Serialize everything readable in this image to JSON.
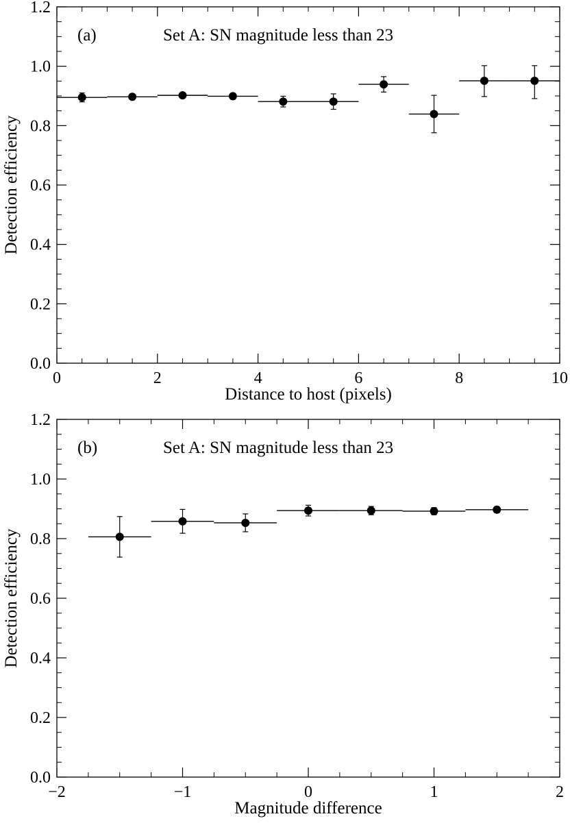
{
  "chart_data": [
    {
      "type": "scatter",
      "panel_label": "(a)",
      "annotation": "Set A:  SN magnitude less than 23",
      "xlabel": "Distance to host (pixels)",
      "ylabel": "Detection efficiency",
      "xlim": [
        0,
        10
      ],
      "ylim": [
        0,
        1.2
      ],
      "xticks": [
        0,
        2,
        4,
        6,
        8,
        10
      ],
      "xtick_labels": [
        "0",
        "2",
        "4",
        "6",
        "8",
        "10"
      ],
      "yticks": [
        0.0,
        0.2,
        0.4,
        0.6,
        0.8,
        1.0,
        1.2
      ],
      "ytick_labels": [
        "0.0",
        "0.2",
        "0.4",
        "0.6",
        "0.8",
        "1.0",
        "1.2"
      ],
      "grid": false,
      "points": [
        {
          "x": 0.5,
          "y": 0.895,
          "xerr": 0.5,
          "yerr_low": 0.015,
          "yerr_high": 0.015
        },
        {
          "x": 1.5,
          "y": 0.897,
          "xerr": 0.5,
          "yerr_low": 0.006,
          "yerr_high": 0.006
        },
        {
          "x": 2.5,
          "y": 0.902,
          "xerr": 0.5,
          "yerr_low": 0.006,
          "yerr_high": 0.006
        },
        {
          "x": 3.5,
          "y": 0.899,
          "xerr": 0.5,
          "yerr_low": 0.01,
          "yerr_high": 0.01
        },
        {
          "x": 4.5,
          "y": 0.881,
          "xerr": 0.5,
          "yerr_low": 0.018,
          "yerr_high": 0.018
        },
        {
          "x": 5.5,
          "y": 0.881,
          "xerr": 0.5,
          "yerr_low": 0.026,
          "yerr_high": 0.026
        },
        {
          "x": 6.5,
          "y": 0.939,
          "xerr": 0.5,
          "yerr_low": 0.026,
          "yerr_high": 0.026
        },
        {
          "x": 7.5,
          "y": 0.839,
          "xerr": 0.5,
          "yerr_low": 0.063,
          "yerr_high": 0.063
        },
        {
          "x": 8.5,
          "y": 0.951,
          "xerr": 0.5,
          "yerr_low": 0.053,
          "yerr_high": 0.051
        },
        {
          "x": 9.5,
          "y": 0.951,
          "xerr": 0.5,
          "yerr_low": 0.06,
          "yerr_high": 0.051
        }
      ]
    },
    {
      "type": "scatter",
      "panel_label": "(b)",
      "annotation": "Set A:  SN magnitude less than 23",
      "xlabel": "Magnitude difference",
      "ylabel": "Detection efficiency",
      "xlim": [
        -2,
        2
      ],
      "ylim": [
        0,
        1.2
      ],
      "xticks": [
        -2,
        -1,
        0,
        1,
        2
      ],
      "xtick_labels": [
        "−2",
        "−1",
        "0",
        "1",
        "2"
      ],
      "yticks": [
        0.0,
        0.2,
        0.4,
        0.6,
        0.8,
        1.0,
        1.2
      ],
      "ytick_labels": [
        "0.0",
        "0.2",
        "0.4",
        "0.6",
        "0.8",
        "1.0",
        "1.2"
      ],
      "grid": false,
      "points": [
        {
          "x": -1.5,
          "y": 0.806,
          "xerr": 0.25,
          "yerr_low": 0.068,
          "yerr_high": 0.068
        },
        {
          "x": -1.0,
          "y": 0.858,
          "xerr": 0.25,
          "yerr_low": 0.04,
          "yerr_high": 0.04
        },
        {
          "x": -0.5,
          "y": 0.853,
          "xerr": 0.25,
          "yerr_low": 0.03,
          "yerr_high": 0.03
        },
        {
          "x": 0.0,
          "y": 0.894,
          "xerr": 0.25,
          "yerr_low": 0.018,
          "yerr_high": 0.018
        },
        {
          "x": 0.5,
          "y": 0.894,
          "xerr": 0.25,
          "yerr_low": 0.014,
          "yerr_high": 0.014
        },
        {
          "x": 1.0,
          "y": 0.892,
          "xerr": 0.25,
          "yerr_low": 0.012,
          "yerr_high": 0.012
        },
        {
          "x": 1.5,
          "y": 0.897,
          "xerr": 0.25,
          "yerr_low": 0.01,
          "yerr_high": 0.01
        }
      ]
    }
  ]
}
